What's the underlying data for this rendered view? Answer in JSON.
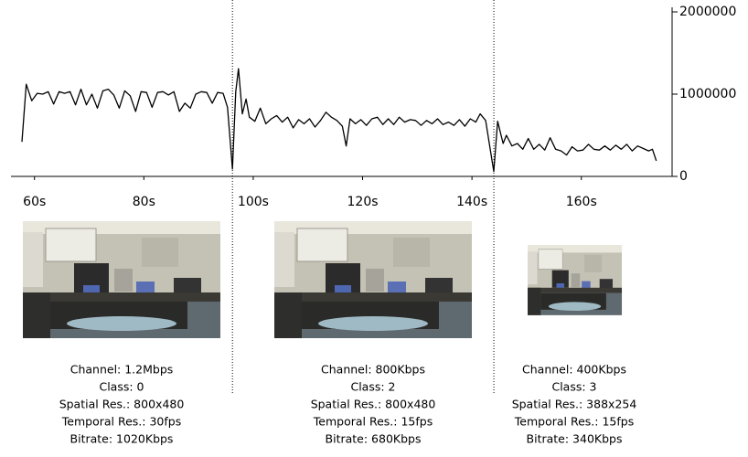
{
  "chart_data": {
    "type": "line",
    "x": [
      57.7,
      58.5,
      59.5,
      60.5,
      61.5,
      62.5,
      63.5,
      64.5,
      65.5,
      66.5,
      67.5,
      68.5,
      69.5,
      70.5,
      71.5,
      72.5,
      73.5,
      74.5,
      75.5,
      76.5,
      77.5,
      78.5,
      79.5,
      80.5,
      81.5,
      82.5,
      83.5,
      84.5,
      85.5,
      86.5,
      87.5,
      88.5,
      89.5,
      90.5,
      91.5,
      92.5,
      93.5,
      94.5,
      95.3,
      96.2,
      96.8,
      97.3,
      98,
      98.7,
      99.3,
      100.3,
      101.3,
      102.3,
      103.3,
      104.3,
      105.3,
      106.3,
      107.3,
      108.3,
      109.3,
      110.3,
      111.3,
      112.3,
      113.3,
      114.3,
      115.3,
      116.3,
      117,
      117.7,
      118.7,
      119.7,
      120.7,
      121.7,
      122.7,
      123.7,
      124.7,
      125.7,
      126.7,
      127.7,
      128.7,
      129.7,
      130.7,
      131.7,
      132.7,
      133.7,
      134.7,
      135.7,
      136.7,
      137.7,
      138.7,
      139.7,
      140.7,
      141.5,
      142.5,
      143.5,
      144,
      144.7,
      145.7,
      146.3,
      147.3,
      148.3,
      149.3,
      150.3,
      151.3,
      152.3,
      153.3,
      154.3,
      155.3,
      156.3,
      157.3,
      158.3,
      159.3,
      160.3,
      161.3,
      162.3,
      163.3,
      164.3,
      165.3,
      166.3,
      167.3,
      168.3,
      169.3,
      170.3,
      171.3,
      172.3,
      173,
      173.7
    ],
    "series": [
      {
        "color": "#000000",
        "values": [
          420000,
          1120000,
          920000,
          1010000,
          1000000,
          1030000,
          880000,
          1030000,
          1010000,
          1030000,
          870000,
          1060000,
          870000,
          1000000,
          830000,
          1040000,
          1060000,
          990000,
          830000,
          1040000,
          980000,
          790000,
          1030000,
          1020000,
          840000,
          1020000,
          1030000,
          990000,
          1030000,
          790000,
          890000,
          830000,
          1000000,
          1030000,
          1020000,
          890000,
          1020000,
          1010000,
          840000,
          90000,
          1030000,
          1310000,
          760000,
          940000,
          720000,
          670000,
          830000,
          640000,
          700000,
          740000,
          660000,
          720000,
          590000,
          690000,
          640000,
          700000,
          600000,
          680000,
          780000,
          720000,
          680000,
          610000,
          370000,
          700000,
          640000,
          690000,
          620000,
          700000,
          720000,
          630000,
          700000,
          630000,
          720000,
          660000,
          690000,
          680000,
          620000,
          680000,
          640000,
          700000,
          630000,
          660000,
          620000,
          690000,
          610000,
          700000,
          660000,
          760000,
          680000,
          260000,
          60000,
          670000,
          400000,
          500000,
          370000,
          400000,
          330000,
          460000,
          330000,
          390000,
          320000,
          470000,
          330000,
          310000,
          260000,
          360000,
          310000,
          320000,
          390000,
          330000,
          320000,
          370000,
          320000,
          380000,
          330000,
          390000,
          310000,
          370000,
          340000,
          310000,
          330000,
          190000
        ]
      }
    ],
    "xlim": [
      55.7,
      176.6
    ],
    "xticks": [
      {
        "value": 60,
        "label": "60s"
      },
      {
        "value": 80,
        "label": "80s"
      },
      {
        "value": 100,
        "label": "100s"
      },
      {
        "value": 120,
        "label": "120s"
      },
      {
        "value": 140,
        "label": "140s"
      },
      {
        "value": 160,
        "label": "160s"
      }
    ],
    "ylim": [
      0,
      2000000
    ],
    "yticks": [
      0,
      1000000,
      2000000
    ],
    "y_axis_side": "right",
    "vlines": [
      96.2,
      144
    ]
  },
  "panels": [
    {
      "lines": [
        "Channel: 1.2Mbps",
        "Class: 0",
        "Spatial Res.: 800x480",
        "Temporal Res.: 30fps",
        "Bitrate: 1020Kbps"
      ]
    },
    {
      "lines": [
        "Channel: 800Kbps",
        "Class: 2",
        "Spatial Res.: 800x480",
        "Temporal Res.: 15fps",
        "Bitrate: 680Kbps"
      ]
    },
    {
      "lines": [
        "Channel: 400Kbps",
        "Class: 3",
        "Spatial Res.: 388x254",
        "Temporal Res.: 15fps",
        "Bitrate: 340Kbps"
      ]
    }
  ]
}
